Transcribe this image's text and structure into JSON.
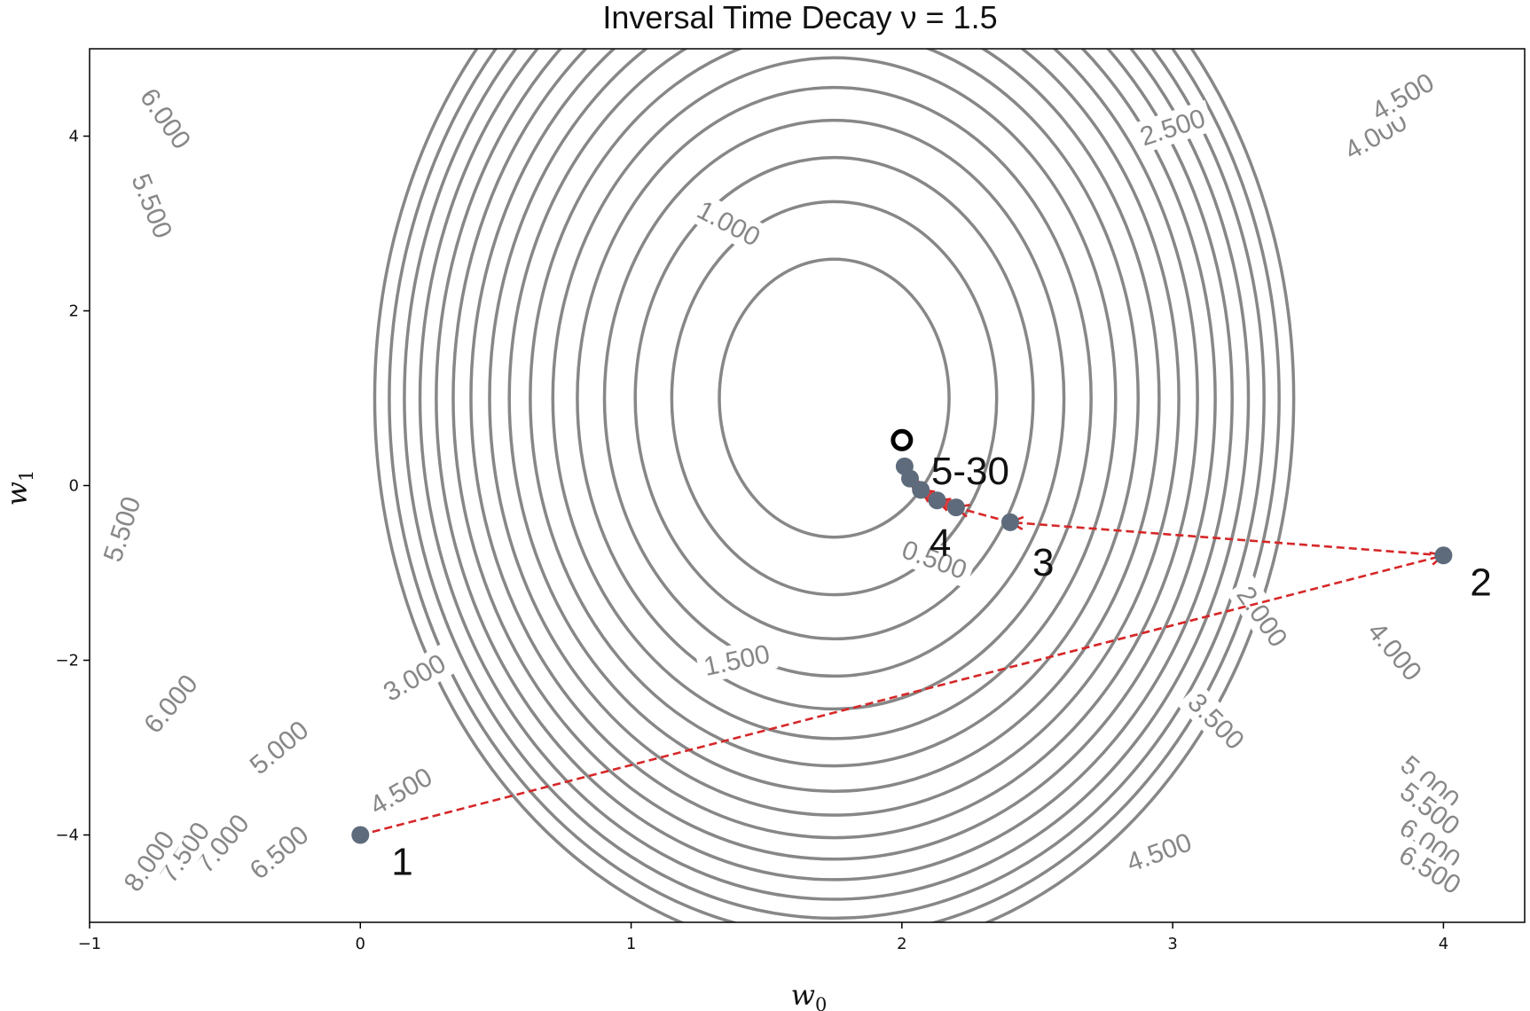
{
  "chart_data": {
    "type": "contour",
    "title": "Inversal Time Decay ν = 1.5",
    "xlabel": "w",
    "xlabel_sub": "0",
    "ylabel": "w",
    "ylabel_sub": "1",
    "xlim": [
      -1,
      4.3
    ],
    "ylim": [
      -5,
      5
    ],
    "xticks": [
      -1,
      0,
      1,
      2,
      3,
      4
    ],
    "yticks": [
      -4,
      -2,
      0,
      2,
      4
    ],
    "xtick_labels": [
      "−1",
      "0",
      "1",
      "2",
      "3",
      "4"
    ],
    "ytick_labels": [
      "−4",
      "−2",
      "0",
      "2",
      "4"
    ],
    "grid": false,
    "contours": {
      "center": [
        1.75,
        1.0
      ],
      "semi_axis_x_per_sqrt_level": 0.6,
      "semi_axis_y_per_sqrt_level": 2.25,
      "levels": [
        0.5,
        1.0,
        1.5,
        2.0,
        2.5,
        3.0,
        3.5,
        4.0,
        4.5,
        5.0,
        5.5,
        6.0,
        6.5,
        7.0,
        7.5,
        8.0
      ],
      "color": "#878787",
      "labels": [
        {
          "text": "0.500",
          "x": 2.12,
          "y": -0.85,
          "angle": -20
        },
        {
          "text": "1.000",
          "x": 1.36,
          "y": 3.0,
          "angle": -28
        },
        {
          "text": "1.500",
          "x": 1.39,
          "y": -2.0,
          "angle": 12
        },
        {
          "text": "2.000",
          "x": 3.33,
          "y": -1.5,
          "angle": -55
        },
        {
          "text": "2.500",
          "x": 3.0,
          "y": 4.1,
          "angle": 18
        },
        {
          "text": "3.000",
          "x": 0.2,
          "y": -2.2,
          "angle": 30
        },
        {
          "text": "3.500",
          "x": 3.16,
          "y": -2.7,
          "angle": -45
        },
        {
          "text": "4.000",
          "x": 3.82,
          "y": -1.9,
          "angle": -50
        },
        {
          "text": "4.000",
          "x": 3.75,
          "y": 4.0,
          "angle": 30
        },
        {
          "text": "4.500",
          "x": 3.85,
          "y": 4.45,
          "angle": 30
        },
        {
          "text": "4.500",
          "x": 0.15,
          "y": -3.5,
          "angle": 30
        },
        {
          "text": "4.500",
          "x": 2.95,
          "y": -4.2,
          "angle": 20
        },
        {
          "text": "5.000",
          "x": -0.3,
          "y": -3.0,
          "angle": 40
        },
        {
          "text": "5.000",
          "x": 3.95,
          "y": -3.4,
          "angle": -40
        },
        {
          "text": "5.500",
          "x": -0.77,
          "y": 3.2,
          "angle": -68
        },
        {
          "text": "5.500",
          "x": -0.88,
          "y": -0.5,
          "angle": 72
        },
        {
          "text": "5.500",
          "x": 3.95,
          "y": -3.7,
          "angle": -38
        },
        {
          "text": "6.000",
          "x": -0.72,
          "y": 4.2,
          "angle": -55
        },
        {
          "text": "6.000",
          "x": -0.7,
          "y": -2.5,
          "angle": 50
        },
        {
          "text": "6.000",
          "x": 3.95,
          "y": -4.1,
          "angle": -35
        },
        {
          "text": "6.500",
          "x": -0.3,
          "y": -4.2,
          "angle": 40
        },
        {
          "text": "6.500",
          "x": 3.95,
          "y": -4.4,
          "angle": -32
        },
        {
          "text": "7.000",
          "x": -0.51,
          "y": -4.1,
          "angle": 50
        },
        {
          "text": "7.500",
          "x": -0.65,
          "y": -4.2,
          "angle": 55
        },
        {
          "text": "8.000",
          "x": -0.78,
          "y": -4.3,
          "angle": 55
        }
      ]
    },
    "path": {
      "color": "#d62728",
      "style": "dashed",
      "points": [
        {
          "x": 0.0,
          "y": -4.0,
          "label": "1"
        },
        {
          "x": 4.0,
          "y": -0.8,
          "label": "2"
        },
        {
          "x": 2.4,
          "y": -0.42,
          "label": "3"
        },
        {
          "x": 2.2,
          "y": -0.25,
          "label": "4"
        },
        {
          "x": 2.13,
          "y": -0.17,
          "label": ""
        },
        {
          "x": 2.07,
          "y": -0.05,
          "label": ""
        },
        {
          "x": 2.03,
          "y": 0.08,
          "label": ""
        },
        {
          "x": 2.01,
          "y": 0.22,
          "label": "5-30"
        }
      ],
      "marker_color": "#5d6b7c"
    },
    "minimum_marker": {
      "x": 2.0,
      "y": 0.52,
      "label": "",
      "color": "#000000"
    }
  }
}
